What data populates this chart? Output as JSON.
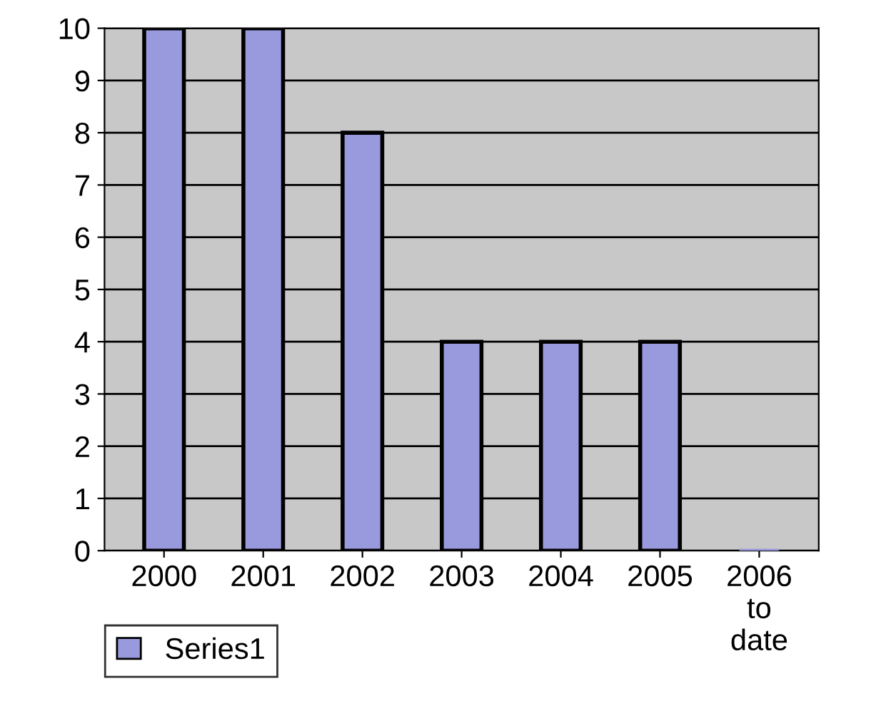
{
  "chart_data": {
    "type": "bar",
    "categories": [
      "2000",
      "2001",
      "2002",
      "2003",
      "2004",
      "2005",
      "2006\nto\ndate"
    ],
    "series": [
      {
        "name": "Series1",
        "color": "#9999dd",
        "values": [
          10,
          10,
          8,
          4,
          4,
          4,
          0
        ]
      }
    ],
    "ylim": [
      0,
      10
    ],
    "yticks": [
      0,
      1,
      2,
      3,
      4,
      5,
      6,
      7,
      8,
      9,
      10
    ],
    "grid": "y",
    "legend": "bottom left"
  }
}
